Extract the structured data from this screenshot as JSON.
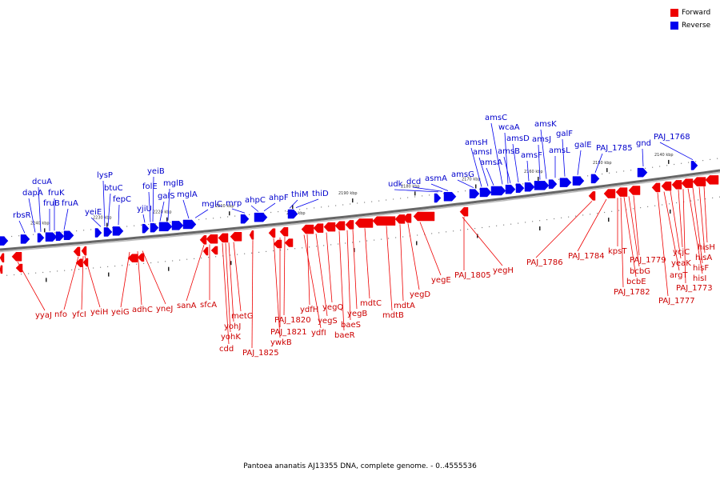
{
  "legend": {
    "items": [
      {
        "label": "Forward",
        "color": "#ee0000"
      },
      {
        "label": "Reverse",
        "color": "#0000ee"
      }
    ]
  },
  "caption": "Pantoea ananatis AJ13355 DNA, complete genome. - 0..4555536",
  "axis_ticks": [
    "2140 kbp",
    "2150 kbp",
    "2160 kbp",
    "2170 kbp",
    "2180 kbp",
    "2190 kbp",
    "2200 kbp",
    "2210 kbp",
    "2220 kbp",
    "2230 kbp",
    "2240 kbp"
  ],
  "reverse_genes": [
    "rbsR",
    "dapA",
    "dcuA",
    "fruB",
    "fruK",
    "fruA",
    "yeiE",
    "lysP",
    "btuC",
    "fepC",
    "yjiU",
    "folE",
    "yeiB",
    "galS",
    "mglB",
    "mglA",
    "mglC",
    "mrp",
    "ahpC",
    "ahpF",
    "thiM",
    "thiD",
    "udk",
    "dcd",
    "asmA",
    "amsG",
    "amsH",
    "amsI",
    "amsA",
    "amsC",
    "wcaA",
    "amsB",
    "amsD",
    "amsF",
    "amsJ",
    "amsK",
    "amsL",
    "galF",
    "galE",
    "PAJ_1785",
    "gnd",
    "PAJ_1768"
  ],
  "forward_genes": [
    "yyaJ",
    "nfo",
    "yfcI",
    "yeiH",
    "yeiG",
    "adhC",
    "yneJ",
    "sanA",
    "sfcA",
    "cdd",
    "yohK",
    "yohJ",
    "metG",
    "PAJ_1825",
    "ywkB",
    "PAJ_1821",
    "PAJ_1820",
    "ydfI",
    "yegS",
    "ydfH",
    "yegQ",
    "baeR",
    "baeS",
    "yegB",
    "mdtC",
    "mdtB",
    "mdtA",
    "yegD",
    "yegE",
    "PAJ_1805",
    "yegH",
    "PAJ_1786",
    "PAJ_1784",
    "kpsT",
    "bcbE",
    "PAJ_1782",
    "bcbG",
    "PAJ_1779",
    "PAJ_1777",
    "argT",
    "yeaK",
    "ycjC",
    "PAJ_1773",
    "hisI",
    "hisF",
    "hisA",
    "hisH"
  ],
  "colors": {
    "forward": "#ee0000",
    "reverse": "#0000ee",
    "forward_label": "#cc0000",
    "reverse_label": "#0000cc",
    "axis": "#888888"
  }
}
